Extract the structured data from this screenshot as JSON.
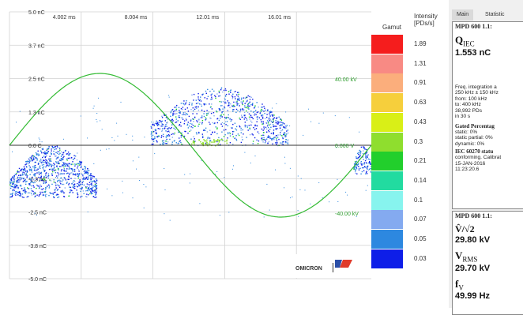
{
  "chart_data": {
    "type": "scatter",
    "y_ticks": [
      "5.0 nC",
      "3.7 nC",
      "2.5 nC",
      "1.3 nC",
      "0.0 C",
      "-1.3 nC",
      "-2.5 nC",
      "-3.8 nC",
      "-5.0 nC"
    ],
    "x_ticks": [
      "4.002 ms",
      "8.004 ms",
      "12.01 ms",
      "16.01 ms"
    ],
    "voltage_labels": [
      "40.00 kV",
      "0.000 V",
      "-40.00 kV"
    ],
    "ylim": [
      -5.0,
      5.0
    ],
    "xlim_ms": [
      0,
      20.0
    ],
    "grid": true,
    "voltage_series": {
      "shape": "sine",
      "amplitude_kv": 42,
      "frequency_hz": 49.99
    },
    "clusters": [
      {
        "name": "positive-cluster",
        "x_ms": [
          7.8,
          15.4
        ],
        "y_nc": [
          0.0,
          2.2
        ]
      },
      {
        "name": "negative-cluster",
        "x_ms": [
          0.0,
          4.8
        ],
        "y_nc": [
          -2.5,
          0.0
        ]
      },
      {
        "name": "end-cluster",
        "x_ms": [
          19.0,
          20.0
        ],
        "y_nc": [
          -1.3,
          0.0
        ]
      }
    ]
  },
  "legend": {
    "gamut_title": "Gamut",
    "intensity_title": "Intensity",
    "intensity_unit": "[PDs/s]",
    "entries": [
      {
        "value": "1.89",
        "color": "#f51d1d"
      },
      {
        "value": "1.31",
        "color": "#f88a84"
      },
      {
        "value": "0.91",
        "color": "#fbae7c"
      },
      {
        "value": "0.63",
        "color": "#f6cf3c"
      },
      {
        "value": "0.43",
        "color": "#d9ef17"
      },
      {
        "value": "0.3",
        "color": "#8fde2e"
      },
      {
        "value": "0.21",
        "color": "#22cf2c"
      },
      {
        "value": "0.14",
        "color": "#22dba0"
      },
      {
        "value": "0.1",
        "color": "#87f4ee"
      },
      {
        "value": "0.07",
        "color": "#84aaf0"
      },
      {
        "value": "0.05",
        "color": "#2d88e0"
      },
      {
        "value": "0.03",
        "color": "#0e1ee8"
      }
    ]
  },
  "logo": {
    "text": "OMICRON"
  },
  "panel": {
    "tabs": [
      "Main",
      "Statistic"
    ],
    "box1": {
      "title": "MPD 600 1.1:",
      "q_symbol": "Q",
      "q_sub": "IEC",
      "q_value": "1.553 nC",
      "freq_lines": [
        "Freq. integration a",
        "250 kHz ± 150 kHz",
        "from:  100 kHz",
        "to:     400 kHz",
        "38,992 PDs",
        "in 30 s"
      ],
      "gated_title": "Gated Percentag",
      "gated_lines": [
        "static:           0%",
        "static partial: 0%",
        "dynamic:        0%"
      ],
      "iec_title": "IEC 60270 statu",
      "status_lines": [
        "conforming. Calibrat",
        "15-JAN-2016",
        "11:23:20.6"
      ]
    },
    "box2": {
      "title": "MPD 600 1.1:",
      "v_peak_label": "V̂/√2",
      "v_peak_value": "29.80 kV",
      "v_rms_symbol": "V",
      "v_rms_sub": "RMS",
      "v_rms_value": "29.70 kV",
      "f_symbol": "f",
      "f_sub": "V",
      "f_value": "49.99 Hz"
    }
  }
}
